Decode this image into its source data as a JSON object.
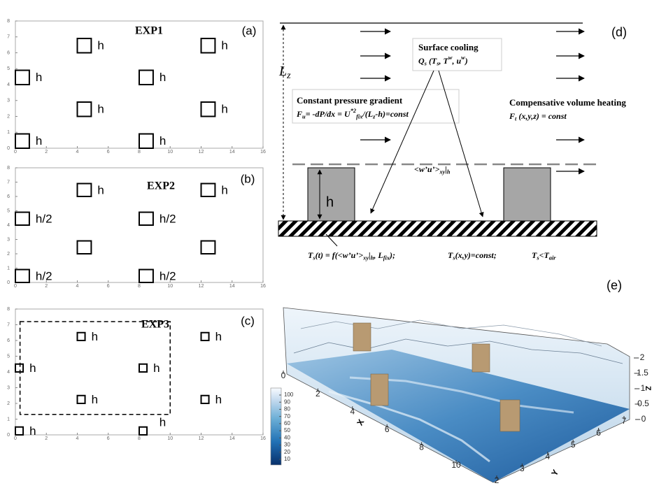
{
  "panels": [
    {
      "label": "(a)",
      "title": "EXP1",
      "xlim": [
        0,
        16
      ],
      "ylim": [
        0,
        8
      ],
      "xticks": [
        0,
        2,
        4,
        6,
        8,
        10,
        12,
        14,
        16
      ],
      "yticks": [
        0,
        1,
        2,
        3,
        4,
        5,
        6,
        7,
        8
      ],
      "block_size": 0.9,
      "blocks": [
        {
          "x": 4,
          "y": 6,
          "label": "h"
        },
        {
          "x": 12,
          "y": 6,
          "label": "h"
        },
        {
          "x": 0,
          "y": 4,
          "label": "h"
        },
        {
          "x": 8,
          "y": 4,
          "label": "h"
        },
        {
          "x": 4,
          "y": 2,
          "label": "h"
        },
        {
          "x": 12,
          "y": 2,
          "label": "h"
        },
        {
          "x": 0,
          "y": 0,
          "label": "h"
        },
        {
          "x": 8,
          "y": 0,
          "label": "h"
        }
      ]
    },
    {
      "label": "(b)",
      "title": "EXP2",
      "xlim": [
        0,
        16
      ],
      "ylim": [
        0,
        8
      ],
      "xticks": [
        0,
        2,
        4,
        6,
        8,
        10,
        12,
        14,
        16
      ],
      "yticks": [
        0,
        1,
        2,
        3,
        4,
        5,
        6,
        7,
        8
      ],
      "block_size": 0.9,
      "blocks": [
        {
          "x": 4,
          "y": 6,
          "label": "h"
        },
        {
          "x": 12,
          "y": 6,
          "label": "h"
        },
        {
          "x": 0,
          "y": 4,
          "label": "h/2"
        },
        {
          "x": 8,
          "y": 4,
          "label": "h/2"
        },
        {
          "x": 4,
          "y": 2
        },
        {
          "x": 12,
          "y": 2
        },
        {
          "x": 0,
          "y": 0,
          "label": "h/2"
        },
        {
          "x": 8,
          "y": 0,
          "label": "h/2"
        }
      ]
    },
    {
      "label": "(c)",
      "title": "EXP3",
      "xlim": [
        0,
        16
      ],
      "ylim": [
        0,
        8
      ],
      "xticks": [
        0,
        2,
        4,
        6,
        8,
        10,
        12,
        14,
        16
      ],
      "yticks": [
        0,
        1,
        2,
        3,
        4,
        5,
        6,
        7,
        8
      ],
      "block_size": 0.5,
      "blocks": [
        {
          "x": 4,
          "y": 6,
          "label": "h"
        },
        {
          "x": 12,
          "y": 6,
          "label": "h"
        },
        {
          "x": 0,
          "y": 4,
          "label": "h"
        },
        {
          "x": 8,
          "y": 4,
          "label": "h"
        },
        {
          "x": 4,
          "y": 2,
          "label": "h"
        },
        {
          "x": 12,
          "y": 2,
          "label": "h"
        },
        {
          "x": 0,
          "y": 0,
          "label": "h"
        },
        {
          "x": 8,
          "y": 0
        }
      ],
      "region": {
        "x0": 0.3,
        "y0": 1.3,
        "x1": 10,
        "y1": 7.2
      },
      "annotation": {
        "x": 9.3,
        "y": 0.75,
        "label": "h"
      }
    }
  ],
  "schematic": {
    "label": "(d)",
    "height_label": [
      {
        "t": "L"
      },
      {
        "sub": "z"
      }
    ],
    "surface_cooling": {
      "title": "Surface cooling",
      "formula": [
        {
          "t": "Q"
        },
        {
          "sub": "s"
        },
        {
          "t": " (T"
        },
        {
          "sub": "s"
        },
        {
          "t": ", T"
        },
        {
          "sup": "w"
        },
        {
          "t": ", u"
        },
        {
          "sup": "w"
        },
        {
          "t": ")"
        }
      ]
    },
    "pressure_gradient": {
      "title": "Constant pressure gradient",
      "formula": [
        {
          "t": "F"
        },
        {
          "sub": "u"
        },
        {
          "t": "= -dP/dx =  U"
        },
        {
          "sup": "*2"
        },
        {
          "sub": "fix"
        },
        {
          "t": "/(L"
        },
        {
          "sub": "z"
        },
        {
          "t": "-h)=const"
        }
      ]
    },
    "volume_heating": {
      "title": "Compensative volume heating",
      "formula": [
        {
          "t": "F"
        },
        {
          "sub": "t"
        },
        {
          "t": " (x,y,z) = const"
        }
      ]
    },
    "flux_label": [
      {
        "t": "<w’u’>"
      },
      {
        "sub": "xy"
      },
      {
        "t": "|"
      },
      {
        "sub": "h"
      }
    ],
    "block_label": "h",
    "boundary": [
      [
        {
          "t": "T"
        },
        {
          "sub": "s"
        },
        {
          "t": "(t) = f(<w’u’>"
        },
        {
          "sub": "xy"
        },
        {
          "t": "|"
        },
        {
          "sub": "h"
        },
        {
          "t": ", L"
        },
        {
          "sub": "fix"
        },
        {
          "t": ");"
        }
      ],
      [
        {
          "t": "T"
        },
        {
          "sub": "s"
        },
        {
          "t": "(x,y)=const;"
        }
      ],
      [
        {
          "t": "T"
        },
        {
          "sub": "s"
        },
        {
          "t": "<T"
        },
        {
          "sub": "air"
        }
      ]
    ]
  },
  "render": {
    "label": "(e)",
    "colorbar_ticks": [
      10,
      20,
      30,
      40,
      50,
      60,
      70,
      80,
      90,
      100
    ],
    "xticks": [
      0,
      2,
      4,
      6,
      8,
      10
    ],
    "x_label": "X",
    "yticks": [
      2,
      3,
      4,
      5,
      6,
      7
    ],
    "y_label": "Y",
    "zticks": [
      0,
      0.5,
      1,
      1.5,
      2
    ],
    "z_label": "Z"
  }
}
